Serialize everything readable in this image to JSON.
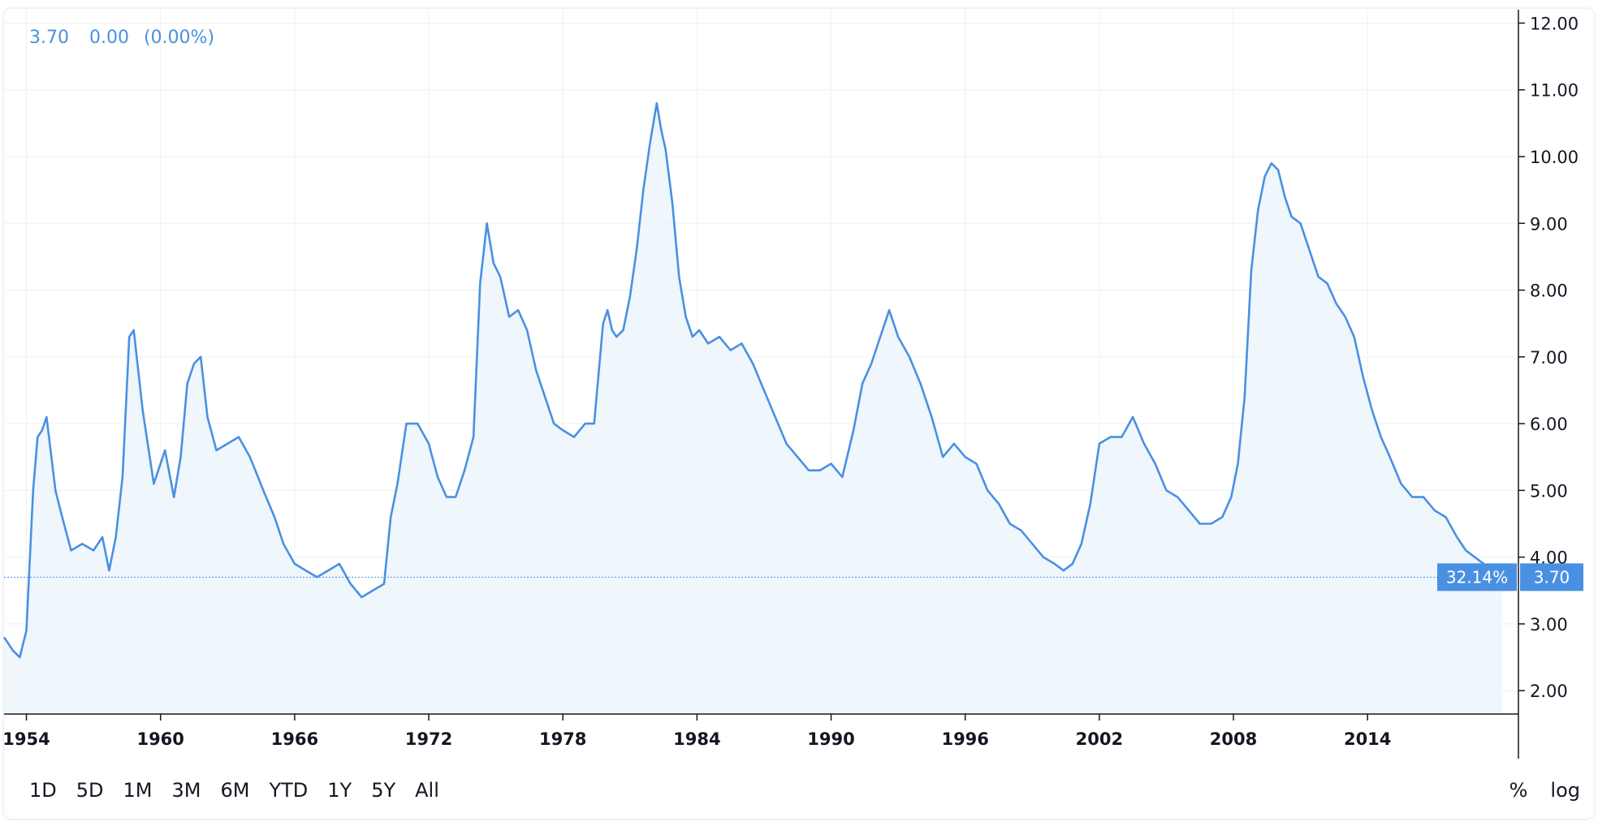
{
  "legend": {
    "last_value": "3.70",
    "change": "0.00",
    "change_pct": "(0.00%)"
  },
  "toolbar": {
    "ranges": [
      "1D",
      "5D",
      "1M",
      "3M",
      "6M",
      "YTD",
      "1Y",
      "5Y",
      "All"
    ],
    "percent_label": "%",
    "log_label": "log"
  },
  "price_marker": {
    "percent": "32.14%",
    "value": "3.70"
  },
  "colors": {
    "line": "#4a90e2",
    "area": "#eaf3fb",
    "marker_bg": "#4a90e2",
    "grid": "#eef0f3"
  },
  "chart_data": {
    "type": "line",
    "title": "",
    "xlabel": "",
    "ylabel": "",
    "x_ticks": [
      "1954",
      "1960",
      "1966",
      "1972",
      "1978",
      "1984",
      "1990",
      "1996",
      "2002",
      "2008",
      "2014"
    ],
    "y_ticks": [
      "2.00",
      "3.00",
      "4.00",
      "5.00",
      "6.00",
      "7.00",
      "8.00",
      "9.00",
      "10.00",
      "11.00",
      "12.00"
    ],
    "xlim": [
      1953.0,
      2020.75
    ],
    "ylim": [
      1.65,
      12.2
    ],
    "grid": true,
    "legend": "none",
    "last_value": 3.7,
    "series": [
      {
        "name": "",
        "x": [
          1953.0,
          1953.4,
          1953.7,
          1954.0,
          1954.3,
          1954.5,
          1954.7,
          1954.9,
          1955.3,
          1955.6,
          1956.0,
          1956.5,
          1957.0,
          1957.4,
          1957.7,
          1958.0,
          1958.3,
          1958.6,
          1958.8,
          1959.2,
          1959.7,
          1960.2,
          1960.6,
          1960.9,
          1961.2,
          1961.5,
          1961.8,
          1962.1,
          1962.5,
          1963.0,
          1963.5,
          1964.0,
          1964.6,
          1965.1,
          1965.5,
          1966.0,
          1966.5,
          1967.0,
          1967.5,
          1968.0,
          1968.5,
          1969.0,
          1969.5,
          1970.0,
          1970.3,
          1970.6,
          1971.0,
          1971.5,
          1972.0,
          1972.4,
          1972.8,
          1973.2,
          1973.6,
          1974.0,
          1974.3,
          1974.6,
          1974.9,
          1975.2,
          1975.6,
          1976.0,
          1976.4,
          1976.8,
          1977.2,
          1977.6,
          1978.0,
          1978.5,
          1979.0,
          1979.4,
          1979.8,
          1980.0,
          1980.2,
          1980.4,
          1980.7,
          1981.0,
          1981.3,
          1981.6,
          1981.9,
          1982.2,
          1982.4,
          1982.6,
          1982.9,
          1983.2,
          1983.5,
          1983.8,
          1984.1,
          1984.5,
          1985.0,
          1985.5,
          1986.0,
          1986.5,
          1987.0,
          1987.5,
          1988.0,
          1988.5,
          1989.0,
          1989.5,
          1990.0,
          1990.5,
          1991.0,
          1991.4,
          1991.8,
          1992.2,
          1992.6,
          1993.0,
          1993.5,
          1994.0,
          1994.5,
          1995.0,
          1995.5,
          1996.0,
          1996.5,
          1997.0,
          1997.5,
          1998.0,
          1998.5,
          1999.0,
          1999.5,
          2000.0,
          2000.4,
          2000.8,
          2001.2,
          2001.6,
          2002.0,
          2002.5,
          2003.0,
          2003.5,
          2004.0,
          2004.5,
          2005.0,
          2005.5,
          2006.0,
          2006.5,
          2007.0,
          2007.5,
          2007.9,
          2008.2,
          2008.5,
          2008.8,
          2009.1,
          2009.4,
          2009.7,
          2010.0,
          2010.3,
          2010.6,
          2011.0,
          2011.4,
          2011.8,
          2012.2,
          2012.6,
          2013.0,
          2013.4,
          2013.8,
          2014.2,
          2014.6,
          2015.0,
          2015.5,
          2016.0,
          2016.5,
          2017.0,
          2017.5,
          2018.0,
          2018.4,
          2018.8,
          2019.2,
          2019.6,
          2020.0
        ],
        "values": [
          2.8,
          2.6,
          2.5,
          2.9,
          5.0,
          5.8,
          5.9,
          6.1,
          5.0,
          4.6,
          4.1,
          4.2,
          4.1,
          4.3,
          3.8,
          4.3,
          5.2,
          7.3,
          7.4,
          6.2,
          5.1,
          5.6,
          4.9,
          5.5,
          6.6,
          6.9,
          7.0,
          6.1,
          5.6,
          5.7,
          5.8,
          5.5,
          5.0,
          4.6,
          4.2,
          3.9,
          3.8,
          3.7,
          3.8,
          3.9,
          3.6,
          3.4,
          3.5,
          3.6,
          4.6,
          5.1,
          6.0,
          6.0,
          5.7,
          5.2,
          4.9,
          4.9,
          5.3,
          5.8,
          8.1,
          9.0,
          8.4,
          8.2,
          7.6,
          7.7,
          7.4,
          6.8,
          6.4,
          6.0,
          5.9,
          5.8,
          6.0,
          6.0,
          7.5,
          7.7,
          7.4,
          7.3,
          7.4,
          7.9,
          8.6,
          9.5,
          10.2,
          10.8,
          10.4,
          10.1,
          9.3,
          8.2,
          7.6,
          7.3,
          7.4,
          7.2,
          7.3,
          7.1,
          7.2,
          6.9,
          6.5,
          6.1,
          5.7,
          5.5,
          5.3,
          5.3,
          5.4,
          5.2,
          5.9,
          6.6,
          6.9,
          7.3,
          7.7,
          7.3,
          7.0,
          6.6,
          6.1,
          5.5,
          5.7,
          5.5,
          5.4,
          5.0,
          4.8,
          4.5,
          4.4,
          4.2,
          4.0,
          3.9,
          3.8,
          3.9,
          4.2,
          4.8,
          5.7,
          5.8,
          5.8,
          6.1,
          5.7,
          5.4,
          5.0,
          4.9,
          4.7,
          4.5,
          4.5,
          4.6,
          4.9,
          5.4,
          6.4,
          8.3,
          9.2,
          9.7,
          9.9,
          9.8,
          9.4,
          9.1,
          9.0,
          8.6,
          8.2,
          8.1,
          7.8,
          7.6,
          7.3,
          6.7,
          6.2,
          5.8,
          5.5,
          5.1,
          4.9,
          4.9,
          4.7,
          4.6,
          4.3,
          4.1,
          4.0,
          3.9,
          3.8,
          3.7
        ]
      }
    ]
  }
}
